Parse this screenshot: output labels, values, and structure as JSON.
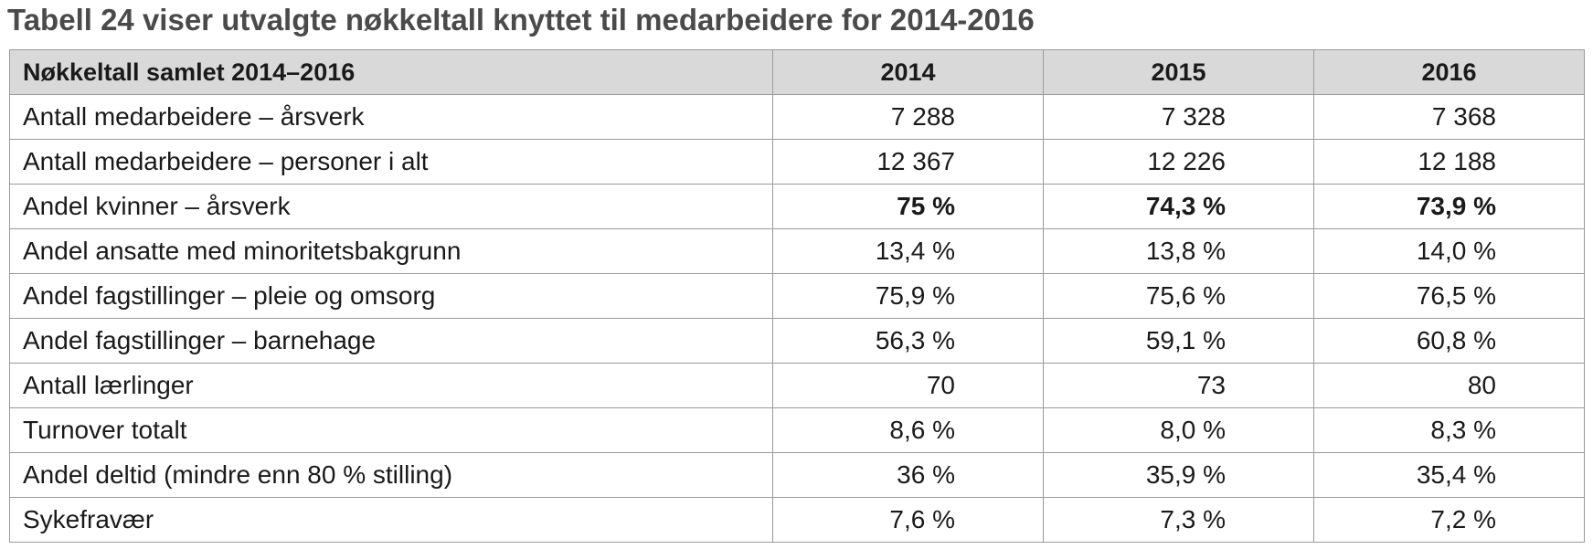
{
  "title": "Tabell 24 viser utvalgte nøkkeltall knyttet til medarbeidere for 2014-2016",
  "table": {
    "header": {
      "label": "Nøkkeltall samlet 2014–2016",
      "years": [
        "2014",
        "2015",
        "2016"
      ]
    },
    "rows": [
      {
        "label": "Antall medarbeidere – årsverk",
        "values": [
          "7 288",
          "7 328",
          "7 368"
        ],
        "bold": false
      },
      {
        "label": "Antall medarbeidere – personer i alt",
        "values": [
          "12 367",
          "12 226",
          "12 188"
        ],
        "bold": false
      },
      {
        "label": "Andel kvinner – årsverk",
        "values": [
          "75 %",
          "74,3 %",
          "73,9 %"
        ],
        "bold": true
      },
      {
        "label": "Andel ansatte med minoritetsbakgrunn",
        "values": [
          "13,4 %",
          "13,8 %",
          "14,0 %"
        ],
        "bold": false
      },
      {
        "label": "Andel fagstillinger – pleie og omsorg",
        "values": [
          "75,9 %",
          "75,6 %",
          "76,5 %"
        ],
        "bold": false
      },
      {
        "label": "Andel fagstillinger – barnehage",
        "values": [
          "56,3 %",
          "59,1 %",
          "60,8 %"
        ],
        "bold": false
      },
      {
        "label": "Antall lærlinger",
        "values": [
          "70",
          "73",
          "80"
        ],
        "bold": false
      },
      {
        "label": "Turnover totalt",
        "values": [
          "8,6 %",
          "8,0 %",
          "8,3 %"
        ],
        "bold": false
      },
      {
        "label": "Andel deltid (mindre enn 80 % stilling)",
        "values": [
          "36 %",
          "35,9 %",
          "35,4 %"
        ],
        "bold": false
      },
      {
        "label": "Sykefravær",
        "values": [
          "7,6 %",
          "7,3 %",
          "7,2 %"
        ],
        "bold": false
      }
    ]
  }
}
